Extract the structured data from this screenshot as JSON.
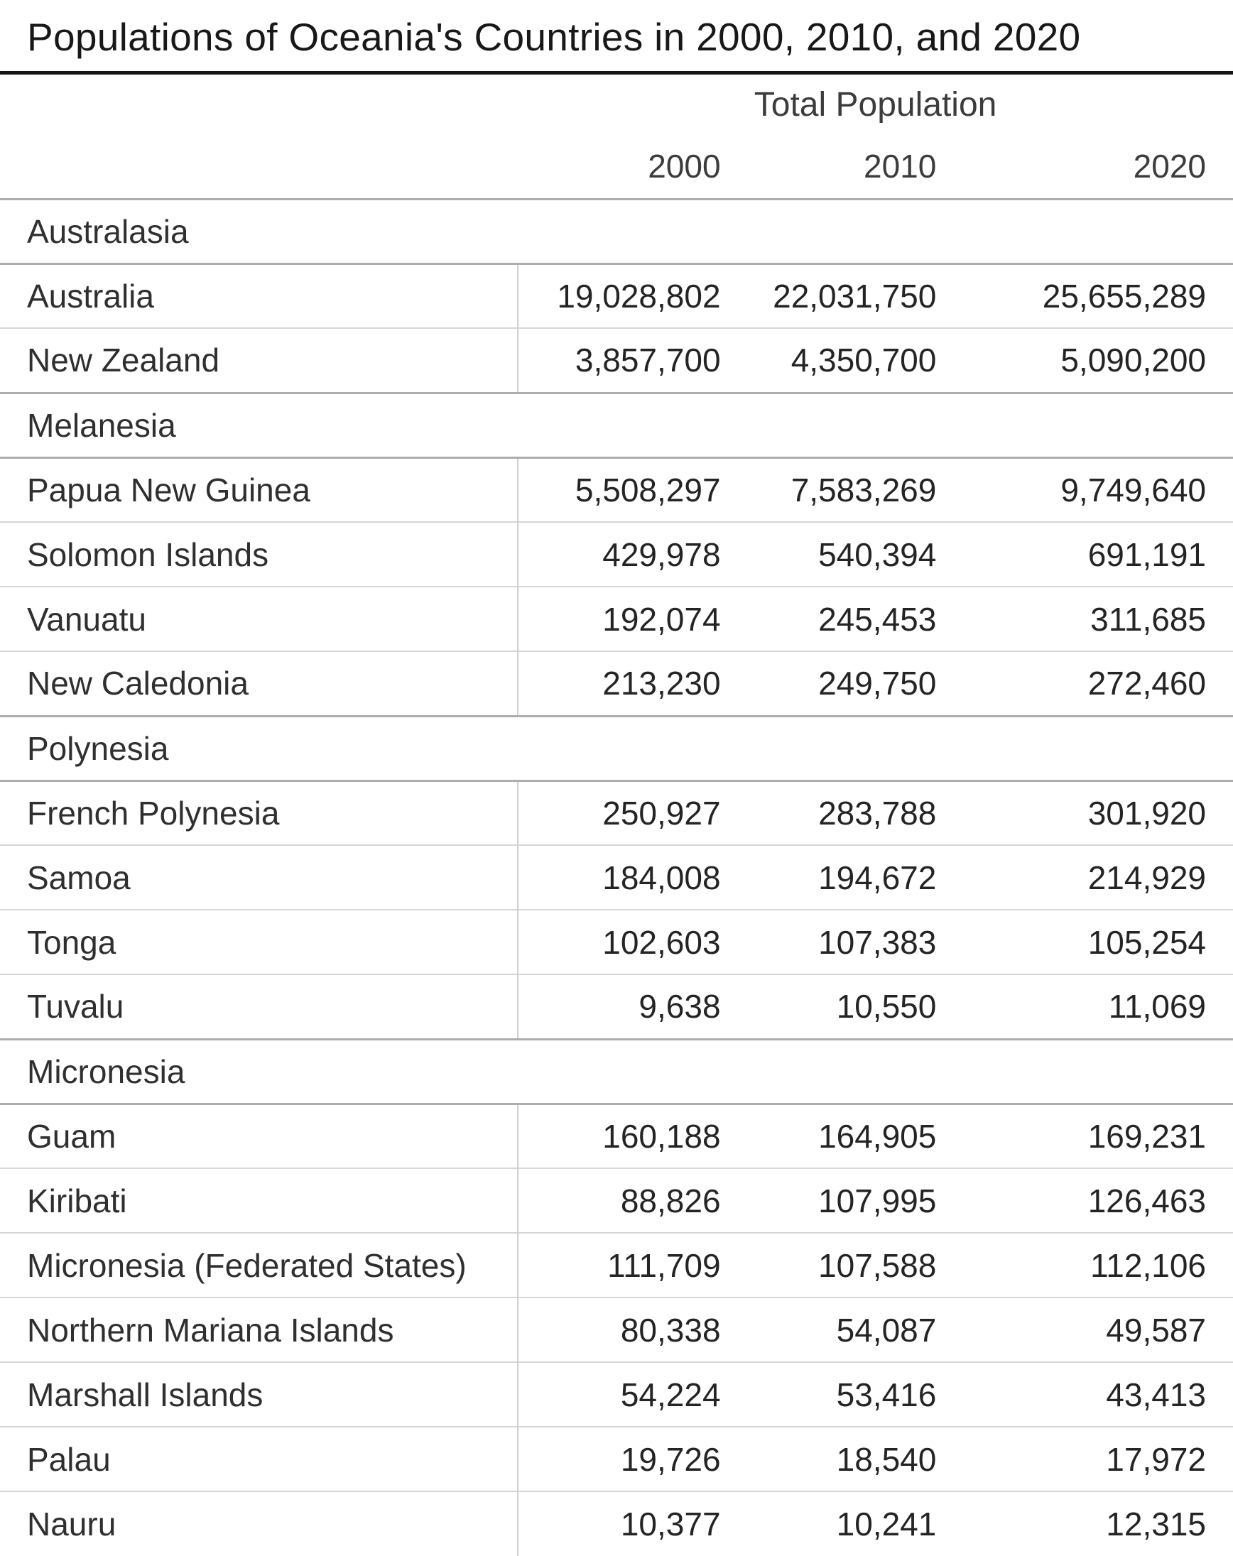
{
  "title": "Populations of Oceania's Countries in 2000, 2010, and 2020",
  "header": {
    "group_label": "Total Population",
    "years": [
      "2000",
      "2010",
      "2020"
    ]
  },
  "sections": [
    {
      "label": "Australasia",
      "rows": [
        {
          "name": "Australia",
          "values": [
            "19,028,802",
            "22,031,750",
            "25,655,289"
          ]
        },
        {
          "name": "New Zealand",
          "values": [
            "3,857,700",
            "4,350,700",
            "5,090,200"
          ]
        }
      ]
    },
    {
      "label": "Melanesia",
      "rows": [
        {
          "name": "Papua New Guinea",
          "values": [
            "5,508,297",
            "7,583,269",
            "9,749,640"
          ]
        },
        {
          "name": "Solomon Islands",
          "values": [
            "429,978",
            "540,394",
            "691,191"
          ]
        },
        {
          "name": "Vanuatu",
          "values": [
            "192,074",
            "245,453",
            "311,685"
          ]
        },
        {
          "name": "New Caledonia",
          "values": [
            "213,230",
            "249,750",
            "272,460"
          ]
        }
      ]
    },
    {
      "label": "Polynesia",
      "rows": [
        {
          "name": "French Polynesia",
          "values": [
            "250,927",
            "283,788",
            "301,920"
          ]
        },
        {
          "name": "Samoa",
          "values": [
            "184,008",
            "194,672",
            "214,929"
          ]
        },
        {
          "name": "Tonga",
          "values": [
            "102,603",
            "107,383",
            "105,254"
          ]
        },
        {
          "name": "Tuvalu",
          "values": [
            "9,638",
            "10,550",
            "11,069"
          ]
        }
      ]
    },
    {
      "label": "Micronesia",
      "rows": [
        {
          "name": "Guam",
          "values": [
            "160,188",
            "164,905",
            "169,231"
          ]
        },
        {
          "name": "Kiribati",
          "values": [
            "88,826",
            "107,995",
            "126,463"
          ]
        },
        {
          "name": "Micronesia (Federated States)",
          "values": [
            "111,709",
            "107,588",
            "112,106"
          ]
        },
        {
          "name": "Northern Mariana Islands",
          "values": [
            "80,338",
            "54,087",
            "49,587"
          ]
        },
        {
          "name": "Marshall Islands",
          "values": [
            "54,224",
            "53,416",
            "43,413"
          ]
        },
        {
          "name": "Palau",
          "values": [
            "19,726",
            "18,540",
            "17,972"
          ]
        },
        {
          "name": "Nauru",
          "values": [
            "10,377",
            "10,241",
            "12,315"
          ]
        }
      ]
    }
  ],
  "colors": {
    "title_rule": "#151515",
    "group_line": "#adadad",
    "row_line": "#d6d6d6",
    "text": "#2f2f2f",
    "header_text": "#3c3c3c"
  },
  "chart_data": {
    "type": "table",
    "title": "Populations of Oceania's Countries in 2000, 2010, and 2020",
    "column_group_label": "Total Population",
    "columns": [
      "2000",
      "2010",
      "2020"
    ],
    "groups": [
      {
        "region": "Australasia",
        "countries": [
          {
            "name": "Australia",
            "populations": [
              19028802,
              22031750,
              25655289
            ]
          },
          {
            "name": "New Zealand",
            "populations": [
              3857700,
              4350700,
              5090200
            ]
          }
        ]
      },
      {
        "region": "Melanesia",
        "countries": [
          {
            "name": "Papua New Guinea",
            "populations": [
              5508297,
              7583269,
              9749640
            ]
          },
          {
            "name": "Solomon Islands",
            "populations": [
              429978,
              540394,
              691191
            ]
          },
          {
            "name": "Vanuatu",
            "populations": [
              192074,
              245453,
              311685
            ]
          },
          {
            "name": "New Caledonia",
            "populations": [
              213230,
              249750,
              272460
            ]
          }
        ]
      },
      {
        "region": "Polynesia",
        "countries": [
          {
            "name": "French Polynesia",
            "populations": [
              250927,
              283788,
              301920
            ]
          },
          {
            "name": "Samoa",
            "populations": [
              184008,
              194672,
              214929
            ]
          },
          {
            "name": "Tonga",
            "populations": [
              102603,
              107383,
              105254
            ]
          },
          {
            "name": "Tuvalu",
            "populations": [
              9638,
              10550,
              11069
            ]
          }
        ]
      },
      {
        "region": "Micronesia",
        "countries": [
          {
            "name": "Guam",
            "populations": [
              160188,
              164905,
              169231
            ]
          },
          {
            "name": "Kiribati",
            "populations": [
              88826,
              107995,
              126463
            ]
          },
          {
            "name": "Micronesia (Federated States)",
            "populations": [
              111709,
              107588,
              112106
            ]
          },
          {
            "name": "Northern Mariana Islands",
            "populations": [
              80338,
              54087,
              49587
            ]
          },
          {
            "name": "Marshall Islands",
            "populations": [
              54224,
              53416,
              43413
            ]
          },
          {
            "name": "Palau",
            "populations": [
              19726,
              18540,
              17972
            ]
          },
          {
            "name": "Nauru",
            "populations": [
              10377,
              10241,
              12315
            ]
          }
        ]
      }
    ]
  }
}
